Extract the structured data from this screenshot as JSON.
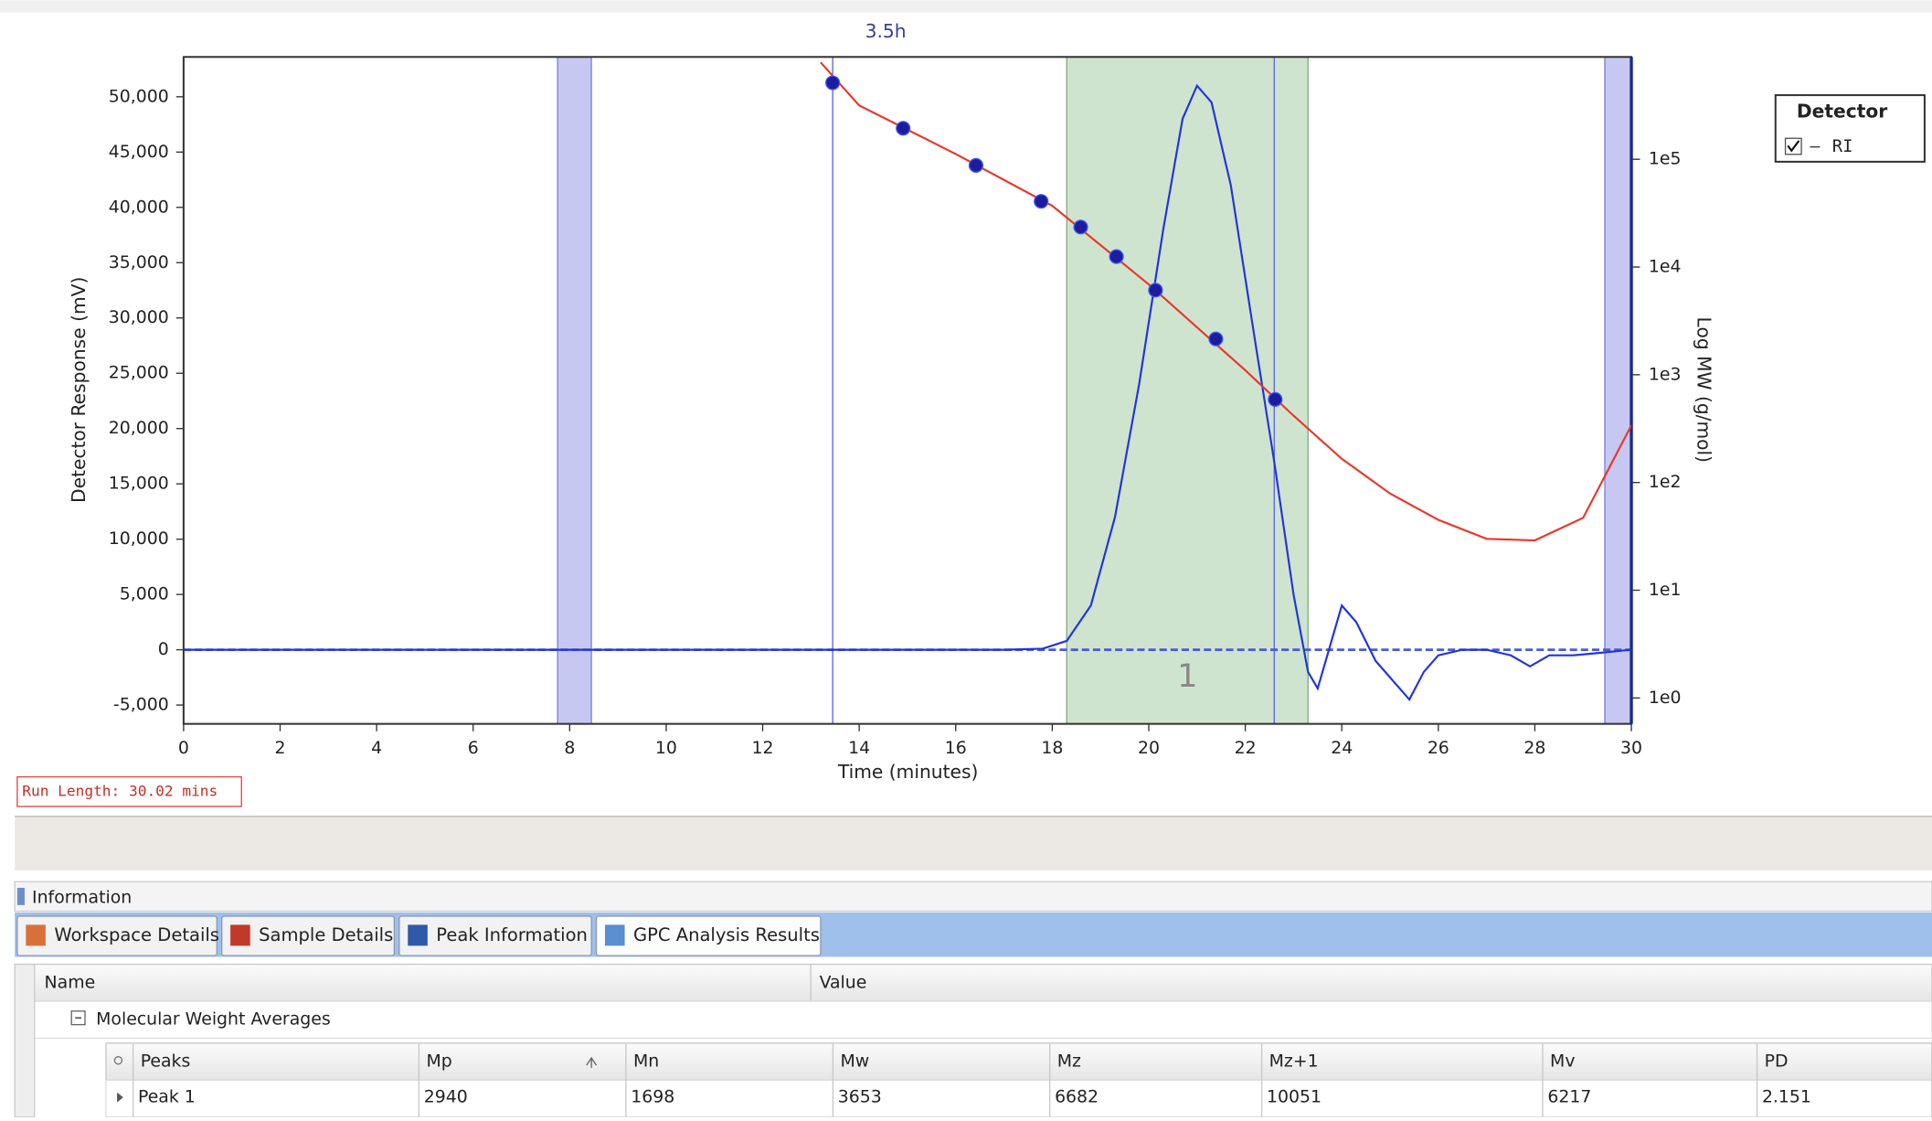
{
  "chart_data": {
    "type": "line",
    "xlabel": "Time (minutes)",
    "ylabel": "Detector Response (mV)",
    "y2label": "Log MW (g/mol)",
    "xlim": [
      0,
      30
    ],
    "xticks": [
      0,
      2,
      4,
      6,
      8,
      10,
      12,
      14,
      16,
      18,
      20,
      22,
      24,
      26,
      28,
      30
    ],
    "ylim": [
      -6700,
      53600
    ],
    "yticks": [
      {
        "value": -5000,
        "label": "-5,000"
      },
      0,
      {
        "value": 5000,
        "label": "5,000"
      },
      {
        "value": 10000,
        "label": "10,000"
      },
      {
        "value": 15000,
        "label": "15,000"
      },
      {
        "value": 20000,
        "label": "20,000"
      },
      {
        "value": 25000,
        "label": "25,000"
      },
      {
        "value": 30000,
        "label": "30,000"
      },
      {
        "value": 35000,
        "label": "35,000"
      },
      {
        "value": 40000,
        "label": "40,000"
      },
      {
        "value": 45000,
        "label": "45,000"
      },
      {
        "value": 50000,
        "label": "50,000"
      }
    ],
    "y2scale": "log",
    "y2lim": [
      0.575,
      891000
    ],
    "y2ticks": [
      {
        "value": 1,
        "label": "1e0"
      },
      {
        "value": 10,
        "label": "1e1"
      },
      {
        "value": 100,
        "label": "1e2"
      },
      {
        "value": 1000,
        "label": "1e3"
      },
      {
        "value": 10000,
        "label": "1e4"
      },
      {
        "value": 100000,
        "label": "1e5"
      }
    ],
    "grid": false,
    "baseline": {
      "value": 0,
      "color": "#4a5ad8"
    },
    "series": [
      {
        "name": "RI",
        "color": "#2233dd",
        "mode": "line",
        "x": [
          0,
          17,
          17.8,
          18.3,
          18.8,
          19.3,
          19.8,
          20.3,
          20.7,
          21.0,
          21.3,
          21.7,
          22.2,
          22.6,
          23.0,
          23.3,
          23.5,
          23.7,
          24.0,
          24.3,
          24.7,
          25.1,
          25.4,
          25.7,
          26.0,
          26.5,
          27.0,
          27.5,
          27.9,
          28.3,
          28.8,
          29.3,
          30
        ],
        "values": [
          0,
          0,
          100,
          800,
          4000,
          12000,
          24000,
          38000,
          48000,
          51000,
          49500,
          42000,
          28000,
          17000,
          5000,
          -2000,
          -3500,
          -500,
          4000,
          2500,
          -1000,
          -3000,
          -4500,
          -2000,
          -500,
          0,
          0,
          -500,
          -1500,
          -500,
          -500,
          -300,
          0
        ]
      },
      {
        "color": "#e8372c",
        "mode": "line",
        "axis": "y2",
        "x": [
          13.2,
          14,
          16,
          18,
          20,
          22,
          23,
          24,
          25,
          26,
          27,
          28,
          29,
          30
        ],
        "values": [
          794000,
          316000,
          112000,
          37000,
          6900,
          1100,
          417,
          166,
          79,
          45,
          30,
          29,
          47,
          339
        ]
      },
      {
        "color": "#1c1c9c",
        "mode": "markers",
        "axis": "y2",
        "x": [
          13.45,
          14.91,
          16.42,
          17.77,
          18.59,
          19.33,
          20.14,
          21.39,
          22.62
        ],
        "values": [
          513000,
          194000,
          87800,
          40700,
          23500,
          12500,
          6100,
          2150,
          590
        ]
      }
    ],
    "bands": [
      {
        "start": 7.75,
        "end": 8.45,
        "color": "#c6c8f2"
      },
      {
        "start": 29.45,
        "end": 30,
        "color": "#c6c8f2"
      }
    ],
    "peak_region": {
      "label": "1",
      "start": 18.3,
      "end": 23.3,
      "color": "#cfe4cf"
    },
    "markers": [
      {
        "x": 13.45,
        "label": "3.5h"
      },
      {
        "x": 22.6
      }
    ],
    "legend": {
      "title": "Detector",
      "position": "right"
    }
  },
  "run_length": "Run Length: 30.02 mins",
  "panel": {
    "title": "Information",
    "tabs": [
      "Workspace Details",
      "Sample Details",
      "Peak Information",
      "GPC Analysis Results"
    ],
    "columns": [
      "Name",
      "Value"
    ],
    "group": "Molecular Weight Averages",
    "table": {
      "headers": [
        "Peaks",
        "Mp",
        "Mn",
        "Mw",
        "Mz",
        "Mz+1",
        "Mv",
        "PD"
      ],
      "rows": [
        [
          "Peak 1",
          2940,
          1698,
          3653,
          6682,
          10051,
          6217,
          2.151
        ]
      ]
    }
  }
}
